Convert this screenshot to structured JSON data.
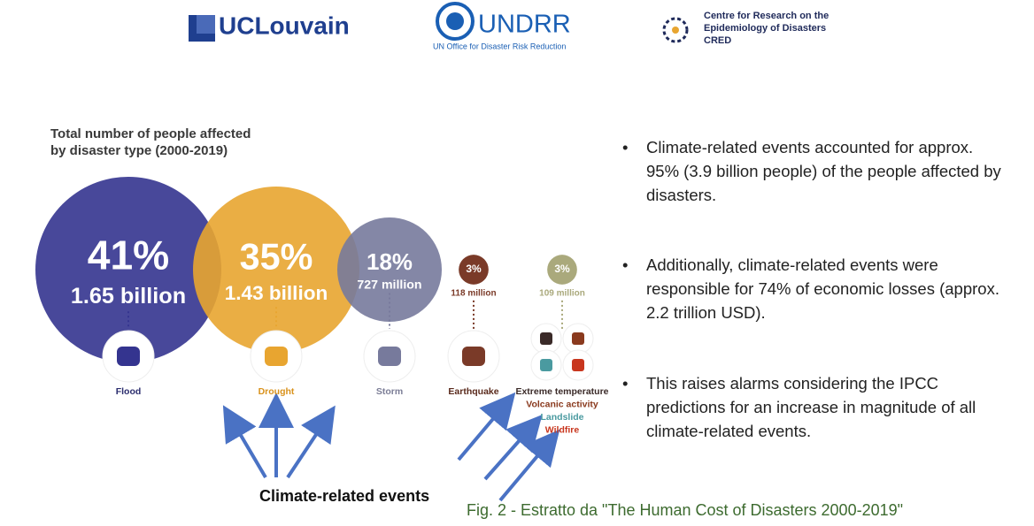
{
  "header": {
    "ucl": "UCLouvain",
    "undrr": "UNDRR",
    "undrr_sub": "UN Office for Disaster Risk Reduction",
    "cred": [
      "Centre for Research on the",
      "Epidemiology of Disasters",
      "CRED"
    ]
  },
  "chart_data": {
    "type": "bubble",
    "title": [
      "Total number of people affected",
      "by disaster type (2000-2019)"
    ],
    "groups": [
      {
        "labels": [
          "Flood"
        ],
        "label_colors": [
          "#2b2d6e"
        ],
        "share": 41,
        "share_label": "41%",
        "people_label": "1.65 billion",
        "color": "#34348f"
      },
      {
        "labels": [
          "Drought"
        ],
        "label_colors": [
          "#d9921c"
        ],
        "share": 35,
        "share_label": "35%",
        "people_label": "1.43 billion",
        "color": "#e8a530"
      },
      {
        "labels": [
          "Storm"
        ],
        "label_colors": [
          "#7b7d96"
        ],
        "share": 18,
        "share_label": "18%",
        "people_label": "727 million",
        "color": "#777a9c"
      },
      {
        "labels": [
          "Earthquake"
        ],
        "label_colors": [
          "#5a2a1c"
        ],
        "share": 3,
        "share_label": "3%",
        "people_label": "118 million",
        "color": "#7a3a28"
      },
      {
        "labels": [
          "Extreme temperature",
          "Volcanic activity",
          "Landslide",
          "Wildfire"
        ],
        "label_colors": [
          "#3a2a28",
          "#8a3a1e",
          "#4a9aa0",
          "#c8361e"
        ],
        "share": 3,
        "share_label": "3%",
        "people_label": "109 million",
        "color": "#aaa97c"
      }
    ],
    "annotation": "Climate-related events"
  },
  "bullets": [
    "Climate-related events accounted for approx. 95% (3.9 billion people) of the people affected by disasters.",
    "Additionally, climate-related events were responsible for 74% of economic losses (approx. 2.2 trillion USD).",
    "This raises alarms considering the IPCC predictions for an increase in magnitude of all climate-related events."
  ],
  "caption": "Fig. 2 - Estratto da  \"The Human Cost of Disasters 2000-2019\""
}
